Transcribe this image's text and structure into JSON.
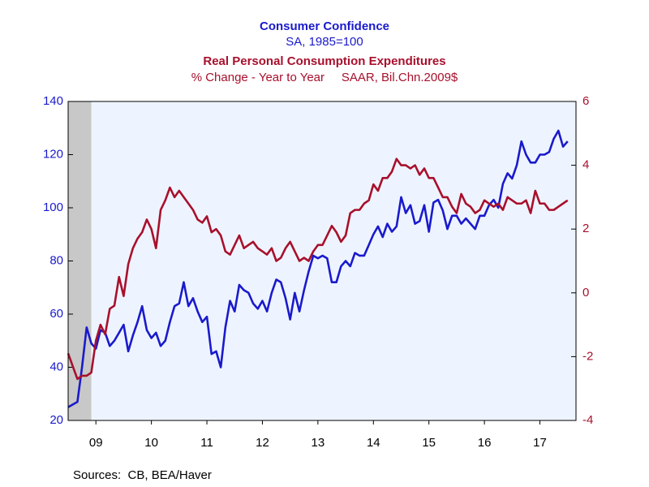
{
  "chart_data": {
    "type": "line",
    "titles": [
      {
        "text": "Consumer Confidence",
        "color": "#1a1acc",
        "bold": true
      },
      {
        "text": "SA, 1985=100",
        "color": "#1a1acc",
        "bold": false
      },
      {
        "text": "Real Personal Consumption Expenditures",
        "color": "#a8102c",
        "bold": true
      },
      {
        "text": "% Change - Year to Year     SAAR, Bil.Chn.2009$",
        "color": "#a8102c",
        "bold": false
      }
    ],
    "source": "Sources:  CB, BEA/Haver",
    "recession": [
      2009.0,
      2009.417
    ],
    "x": [
      2009.0,
      2009.083,
      2009.167,
      2009.25,
      2009.333,
      2009.417,
      2009.5,
      2009.583,
      2009.667,
      2009.75,
      2009.833,
      2009.917,
      2010.0,
      2010.083,
      2010.167,
      2010.25,
      2010.333,
      2010.417,
      2010.5,
      2010.583,
      2010.667,
      2010.75,
      2010.833,
      2010.917,
      2011.0,
      2011.083,
      2011.167,
      2011.25,
      2011.333,
      2011.417,
      2011.5,
      2011.583,
      2011.667,
      2011.75,
      2011.833,
      2011.917,
      2012.0,
      2012.083,
      2012.167,
      2012.25,
      2012.333,
      2012.417,
      2012.5,
      2012.583,
      2012.667,
      2012.75,
      2012.833,
      2012.917,
      2013.0,
      2013.083,
      2013.167,
      2013.25,
      2013.333,
      2013.417,
      2013.5,
      2013.583,
      2013.667,
      2013.75,
      2013.833,
      2013.917,
      2014.0,
      2014.083,
      2014.167,
      2014.25,
      2014.333,
      2014.417,
      2014.5,
      2014.583,
      2014.667,
      2014.75,
      2014.833,
      2014.917,
      2015.0,
      2015.083,
      2015.167,
      2015.25,
      2015.333,
      2015.417,
      2015.5,
      2015.583,
      2015.667,
      2015.75,
      2015.833,
      2015.917,
      2016.0,
      2016.083,
      2016.167,
      2016.25,
      2016.333,
      2016.417,
      2016.5,
      2016.583,
      2016.667,
      2016.75,
      2016.833,
      2016.917,
      2017.0,
      2017.083,
      2017.167,
      2017.25,
      2017.333,
      2017.417,
      2017.5,
      2017.583,
      2017.667,
      2017.75,
      2017.833,
      2017.917,
      2018.0
    ],
    "xlim": [
      2009.0,
      2018.15
    ],
    "xticks": [
      {
        "value": 2009.5,
        "label": "09"
      },
      {
        "value": 2010.5,
        "label": "10"
      },
      {
        "value": 2011.5,
        "label": "11"
      },
      {
        "value": 2012.5,
        "label": "12"
      },
      {
        "value": 2013.5,
        "label": "13"
      },
      {
        "value": 2014.5,
        "label": "14"
      },
      {
        "value": 2015.5,
        "label": "15"
      },
      {
        "value": 2016.5,
        "label": "16"
      },
      {
        "value": 2017.5,
        "label": "17"
      }
    ],
    "ylim": [
      20,
      140
    ],
    "yticks": [
      20,
      40,
      60,
      80,
      100,
      120,
      140
    ],
    "y2lim": [
      -4,
      6
    ],
    "y2ticks": [
      -4,
      -2,
      0,
      2,
      4,
      6
    ],
    "series": [
      {
        "name": "Consumer Confidence",
        "color": "#1a1acc",
        "values": [
          25,
          26,
          27,
          40,
          55,
          49,
          47,
          54,
          53,
          48,
          50,
          53,
          56,
          46,
          52,
          57,
          63,
          54,
          51,
          53,
          48,
          50,
          57,
          63,
          64,
          72,
          63,
          66,
          61,
          57,
          59,
          45,
          46,
          40,
          55,
          65,
          61,
          71,
          69,
          68,
          64,
          62,
          65,
          61,
          68,
          73,
          72,
          66,
          58,
          68,
          61,
          69,
          76,
          82,
          81,
          82,
          81,
          72,
          72,
          78,
          80,
          78,
          83,
          82,
          82,
          86,
          90,
          93,
          89,
          94,
          91,
          93,
          104,
          98,
          101,
          94,
          95,
          101,
          91,
          102,
          103,
          99,
          92,
          97,
          97,
          94,
          96,
          94,
          92,
          97,
          97,
          101,
          103,
          100,
          109,
          113,
          111,
          116,
          125,
          120,
          117,
          117,
          120,
          120,
          121,
          126,
          129,
          123,
          125
        ]
      },
      {
        "name": "Real Personal Consumption Expenditures",
        "color": "#a8102c",
        "axis": "y2",
        "values": [
          -1.9,
          -2.3,
          -2.7,
          -2.6,
          -2.6,
          -2.5,
          -1.5,
          -1.0,
          -1.3,
          -0.5,
          -0.4,
          0.5,
          -0.1,
          0.9,
          1.4,
          1.7,
          1.9,
          2.3,
          2.0,
          1.4,
          2.6,
          2.9,
          3.3,
          3.0,
          3.2,
          3.0,
          2.8,
          2.6,
          2.3,
          2.2,
          2.4,
          1.9,
          2.0,
          1.8,
          1.3,
          1.2,
          1.5,
          1.8,
          1.4,
          1.5,
          1.6,
          1.4,
          1.3,
          1.2,
          1.4,
          1.0,
          1.1,
          1.4,
          1.6,
          1.3,
          1.0,
          1.1,
          1.0,
          1.3,
          1.5,
          1.5,
          1.8,
          2.1,
          1.9,
          1.6,
          1.8,
          2.5,
          2.6,
          2.6,
          2.8,
          2.9,
          3.4,
          3.2,
          3.6,
          3.6,
          3.8,
          4.2,
          4.0,
          4.0,
          3.9,
          4.0,
          3.7,
          3.9,
          3.6,
          3.6,
          3.3,
          3.0,
          3.0,
          2.7,
          2.5,
          3.1,
          2.8,
          2.7,
          2.5,
          2.6,
          2.9,
          2.8,
          2.7,
          2.8,
          2.6,
          3.0,
          2.9,
          2.8,
          2.8,
          2.9,
          2.5,
          3.2,
          2.8,
          2.8,
          2.6,
          2.6,
          2.7,
          2.8,
          2.9
        ]
      }
    ]
  }
}
